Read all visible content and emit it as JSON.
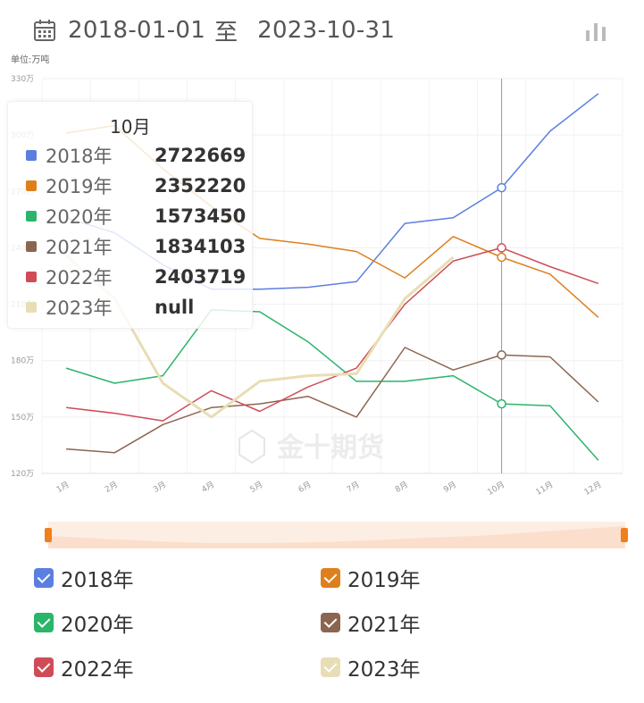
{
  "header": {
    "start_date": "2018-01-01",
    "separator": "至",
    "end_date": "2023-10-31"
  },
  "watermark": "金十期货",
  "chart_data": {
    "type": "line",
    "unit_label": "单位:万吨",
    "categories": [
      "1月",
      "2月",
      "3月",
      "4月",
      "5月",
      "6月",
      "7月",
      "8月",
      "9月",
      "10月",
      "11月",
      "12月"
    ],
    "y_ticks": [
      "120万",
      "150万",
      "180万",
      "210万",
      "240万",
      "270万",
      "300万",
      "330万"
    ],
    "ylim": [
      120,
      330
    ],
    "grid": true,
    "series": [
      {
        "name": "2018年",
        "color": "#5b7fe0",
        "values": [
          256,
          248,
          231,
          218,
          218,
          219,
          222,
          253,
          256,
          272,
          302,
          322
        ]
      },
      {
        "name": "2019年",
        "color": "#dd7f1c",
        "values": [
          301,
          305,
          282,
          262,
          245,
          242,
          238,
          224,
          246,
          235,
          226,
          203
        ]
      },
      {
        "name": "2020年",
        "color": "#2bb46a",
        "values": [
          176,
          168,
          172,
          207,
          206,
          190,
          169,
          169,
          172,
          157,
          156,
          127
        ]
      },
      {
        "name": "2021年",
        "color": "#8c6551",
        "values": [
          133,
          131,
          146,
          155,
          157,
          161,
          150,
          187,
          175,
          183,
          182,
          158
        ]
      },
      {
        "name": "2022年",
        "color": "#cf4c57",
        "values": [
          155,
          152,
          148,
          164,
          153,
          166,
          176,
          210,
          233,
          240,
          230,
          221
        ]
      },
      {
        "name": "2023年",
        "color": "#e8ddb5",
        "values": [
          236,
          213,
          168,
          150,
          169,
          172,
          173,
          213,
          235,
          null,
          null,
          null
        ]
      }
    ],
    "highlight_index": 9
  },
  "tooltip": {
    "title": "10月",
    "rows": [
      {
        "name": "2018年",
        "value": "2722669",
        "color": "#5b7fe0"
      },
      {
        "name": "2019年",
        "value": "2352220",
        "color": "#dd7f1c"
      },
      {
        "name": "2020年",
        "value": "1573450",
        "color": "#2bb46a"
      },
      {
        "name": "2021年",
        "value": "1834103",
        "color": "#8c6551"
      },
      {
        "name": "2022年",
        "value": "2403719",
        "color": "#cf4c57"
      },
      {
        "name": "2023年",
        "value": "null",
        "color": "#e8ddb5"
      }
    ]
  },
  "legend": [
    {
      "name": "2018年",
      "color": "#5b7fe0"
    },
    {
      "name": "2019年",
      "color": "#dd7f1c"
    },
    {
      "name": "2020年",
      "color": "#2bb46a"
    },
    {
      "name": "2021年",
      "color": "#8c6551"
    },
    {
      "name": "2022年",
      "color": "#cf4c57"
    },
    {
      "name": "2023年",
      "color": "#e8ddb5"
    }
  ]
}
